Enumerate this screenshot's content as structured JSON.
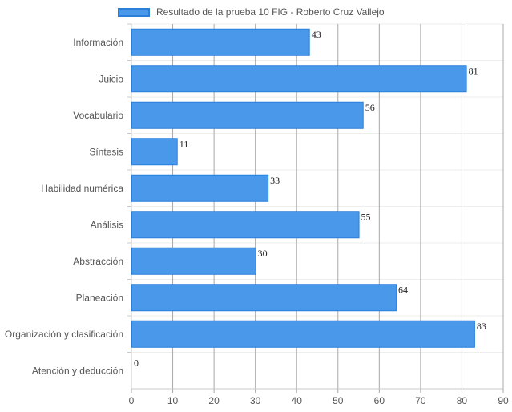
{
  "chart_data": {
    "type": "bar",
    "orientation": "horizontal",
    "categories": [
      "Información",
      "Juicio",
      "Vocabulario",
      "Síntesis",
      "Habilidad numérica",
      "Análisis",
      "Abstracción",
      "Planeación",
      "Organización y clasificación",
      "Atención y deducción"
    ],
    "series": [
      {
        "name": "Resultado de la prueba 10 FIG - Roberto Cruz Vallejo",
        "values": [
          43,
          81,
          56,
          11,
          33,
          55,
          30,
          64,
          83,
          0
        ],
        "color": "#4a98ea",
        "border_color": "#2a7fd8"
      }
    ],
    "xlim": [
      0,
      90
    ],
    "x_ticks": [
      0,
      10,
      20,
      30,
      40,
      50,
      60,
      70,
      80,
      90
    ],
    "grid": true,
    "legend_position": "top",
    "data_labels": true
  }
}
